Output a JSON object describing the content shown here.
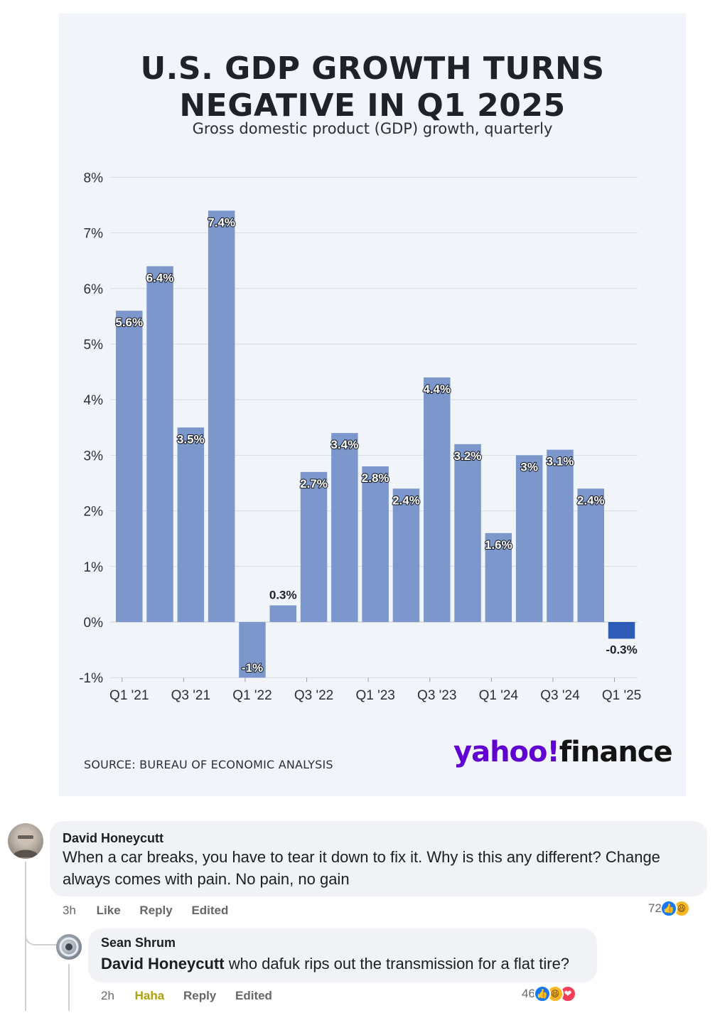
{
  "chart": {
    "title_line1": "U.S. GDP GROWTH TURNS",
    "title_line2": "NEGATIVE IN Q1 2025",
    "subtitle": "Gross domestic product (GDP) growth, quarterly",
    "source": "SOURCE: BUREAU OF ECONOMIC ANALYSIS",
    "brand_yahoo": "yahoo!",
    "brand_finance": "finance"
  },
  "chart_data": {
    "type": "bar",
    "title": "U.S. GDP GROWTH TURNS NEGATIVE IN Q1 2025",
    "subtitle": "Gross domestic product (GDP) growth, quarterly",
    "ylim": [
      -1,
      8
    ],
    "yticks": [
      "8%",
      "7%",
      "6%",
      "5%",
      "4%",
      "3%",
      "2%",
      "1%",
      "0%",
      "-1%"
    ],
    "ytick_values": [
      8,
      7,
      6,
      5,
      4,
      3,
      2,
      1,
      0,
      -1
    ],
    "xtick_labels": [
      "Q1 '21",
      "Q3 '21",
      "Q1 '22",
      "Q3 '22",
      "Q1 '23",
      "Q3 '23",
      "Q1 '24",
      "Q3 '24",
      "Q1 '25"
    ],
    "values": [
      5.6,
      6.4,
      3.5,
      7.4,
      -1,
      0.3,
      2.7,
      3.4,
      2.8,
      2.4,
      4.4,
      3.2,
      1.6,
      3,
      3.1,
      2.4,
      -0.3
    ],
    "labels": [
      "5.6%",
      "6.4%",
      "3.5%",
      "7.4%",
      "-1%",
      "0.3%",
      "2.7%",
      "3.4%",
      "2.8%",
      "2.4%",
      "4.4%",
      "3.2%",
      "1.6%",
      "3%",
      "3.1%",
      "2.4%",
      "-0.3%"
    ],
    "bar_color": "#7b97cc",
    "highlight_color": "#2e5bb5",
    "grid": true
  },
  "comments": [
    {
      "author": "David Honeycutt",
      "text": "When a car breaks, you have to tear it down to fix it. Why is this any different? Change always comes with pain. No pain, no gain",
      "time": "3h",
      "like_label": "Like",
      "reply_label": "Reply",
      "edited_label": "Edited",
      "reaction_count": "72",
      "reactions": [
        "like-icon",
        "haha-icon"
      ]
    },
    {
      "author": "Sean Shrum",
      "mention": "David Honeycutt",
      "text": " who dafuk rips out the transmission for a flat tire?",
      "time": "2h",
      "like_label": "Haha",
      "reply_label": "Reply",
      "edited_label": "Edited",
      "reaction_count": "46",
      "reactions": [
        "like-icon",
        "haha-icon",
        "love-icon"
      ]
    }
  ],
  "colors": {
    "card_bg": "#f1f4f8",
    "brand_purple": "#6001d2",
    "haha_yellow": "#b0a009",
    "like_blue": "#1877f2"
  }
}
